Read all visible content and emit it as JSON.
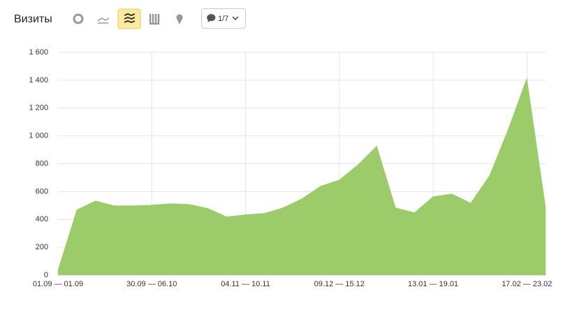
{
  "chart_data": {
    "type": "area",
    "title": "Визиты",
    "categories": [
      "01.09 — 01.09",
      null,
      null,
      null,
      null,
      "30.09 — 06.10",
      null,
      null,
      null,
      null,
      "04.11 — 10.11",
      null,
      null,
      null,
      null,
      "09.12 — 15.12",
      null,
      null,
      null,
      null,
      "13.01 — 19.01",
      null,
      null,
      null,
      null,
      "17.02 — 23.02",
      null
    ],
    "values": [
      40,
      470,
      535,
      500,
      500,
      505,
      515,
      510,
      480,
      420,
      435,
      445,
      485,
      550,
      640,
      685,
      795,
      930,
      485,
      450,
      565,
      585,
      520,
      715,
      1050,
      1420,
      495
    ],
    "color": "#9ccc6a",
    "ylim": [
      0,
      1600
    ],
    "yticks": [
      0,
      200,
      400,
      600,
      800,
      {
        "value": 1000,
        "label": "1 000"
      },
      {
        "value": 1200,
        "label": "1 200"
      },
      {
        "value": 1400,
        "label": "1 400"
      },
      {
        "value": 1600,
        "label": "1 600"
      }
    ],
    "grid": true
  },
  "toolbar": {
    "comments": "1/7"
  }
}
